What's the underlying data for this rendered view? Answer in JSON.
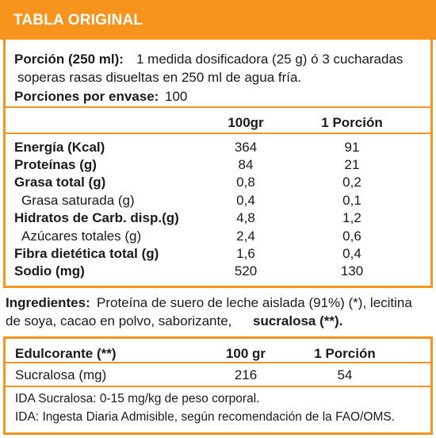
{
  "header": {
    "title": "TABLA ORIGINAL"
  },
  "portion": {
    "label": "Porción (250 ml):",
    "line1": "1 medida dosificadora (25 g) ó 3 cucharadas",
    "line2": "soperas rasas disueltas en 250 ml de agua fría.",
    "servings_label": "Porciones por envase:",
    "servings_value": "100"
  },
  "nutrition": {
    "col1": "100gr",
    "col2": "1 Porción",
    "rows": [
      {
        "label": "Energía (Kcal)",
        "v100": "364",
        "vport": "91",
        "bold": true
      },
      {
        "label": "Proteínas (g)",
        "v100": "84",
        "vport": "21",
        "bold": true
      },
      {
        "label": "Grasa total (g)",
        "v100": "0,8",
        "vport": "0,2",
        "bold": true
      },
      {
        "label": "Grasa saturada (g)",
        "v100": "0,4",
        "vport": "0,1",
        "bold": false
      },
      {
        "label": "Hidratos de Carb. disp.(g)",
        "v100": "4,8",
        "vport": "1,2",
        "bold": true
      },
      {
        "label": "Azúcares totales (g)",
        "v100": "2,4",
        "vport": "0,6",
        "bold": false
      },
      {
        "label": "Fibra dietética total (g)",
        "v100": "1,6",
        "vport": "0,4",
        "bold": true
      },
      {
        "label": "Sodio (mg)",
        "v100": "520",
        "vport": "130",
        "bold": true
      }
    ]
  },
  "ingredients": {
    "label": "Ingredientes:",
    "text1": "Proteína de suero de leche aislada (91%) (*), lecitina",
    "text2": "de soya, cacao en polvo, saborizante,",
    "highlight": "sucralosa (**)."
  },
  "sweetener": {
    "label": "Edulcorante (**)",
    "col1": "100 gr",
    "col2": "1 Porción",
    "item_label": "Sucralosa (mg)",
    "item_v100": "216",
    "item_vport": "54",
    "note1": "IDA Sucralosa: 0-15 mg/kg de peso corporal.",
    "note2": "IDA: Ingesta Diaria Admisible, según recomendación de la FAO/OMS."
  }
}
